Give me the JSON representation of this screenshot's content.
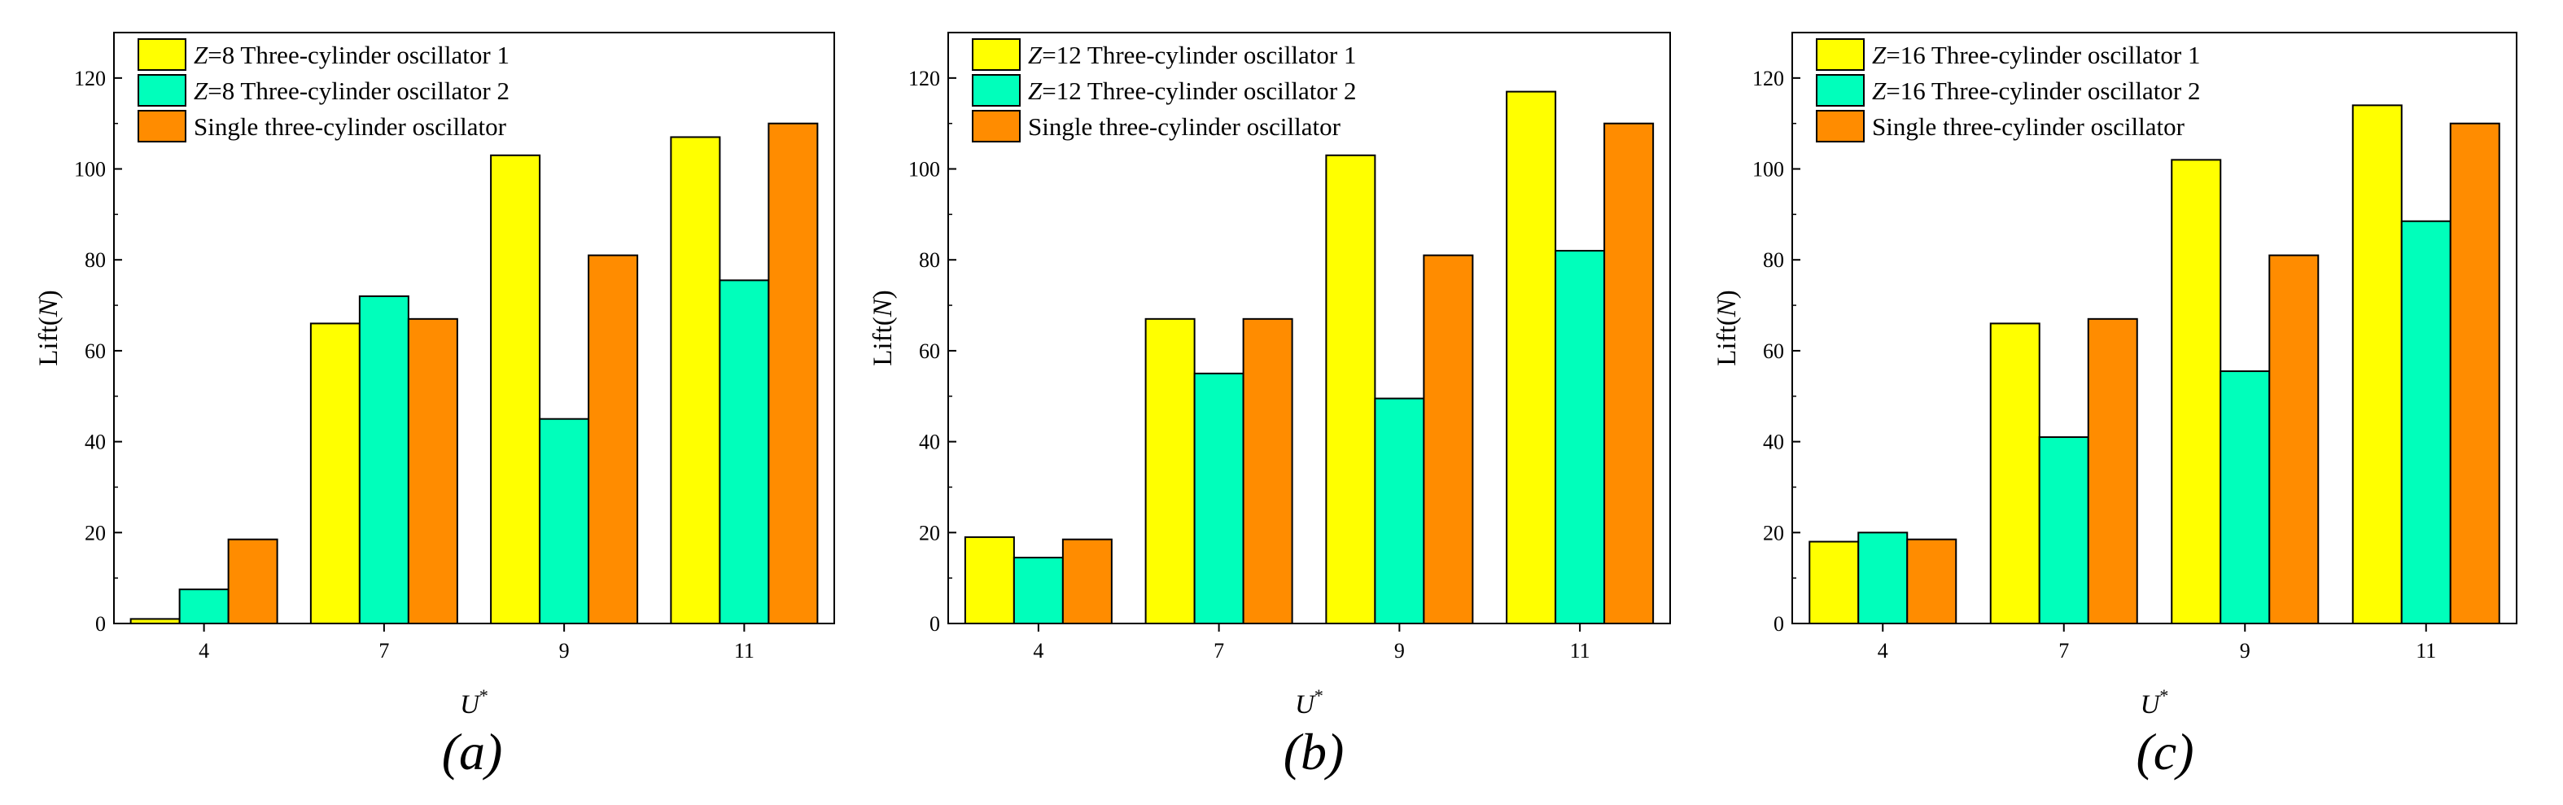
{
  "chart_data": [
    {
      "type": "bar",
      "panel_label": "(a)",
      "categories": [
        "4",
        "7",
        "9",
        "11"
      ],
      "xlabel": "U*",
      "ylabel": "Lift(N)",
      "ylim": [
        0,
        130
      ],
      "yticks": [
        0,
        20,
        40,
        60,
        80,
        100,
        120
      ],
      "legend_position": "top-left",
      "series": [
        {
          "name": "Z=8 Three-cylinder oscillator 1",
          "values": [
            1,
            66,
            103,
            107
          ],
          "color": "#ffff00"
        },
        {
          "name": "Z=8 Three-cylinder oscillator 2",
          "values": [
            7.5,
            72,
            45,
            75.5
          ],
          "color": "#00ffbb"
        },
        {
          "name": "Single three-cylinder oscillator",
          "values": [
            18.5,
            67,
            81,
            110
          ],
          "color": "#ff8c00"
        }
      ]
    },
    {
      "type": "bar",
      "panel_label": "(b)",
      "categories": [
        "4",
        "7",
        "9",
        "11"
      ],
      "xlabel": "U*",
      "ylabel": "Lift(N)",
      "ylim": [
        0,
        130
      ],
      "yticks": [
        0,
        20,
        40,
        60,
        80,
        100,
        120
      ],
      "legend_position": "top-left",
      "series": [
        {
          "name": "Z=12 Three-cylinder oscillator 1",
          "values": [
            19,
            67,
            103,
            117
          ],
          "color": "#ffff00"
        },
        {
          "name": "Z=12 Three-cylinder oscillator 2",
          "values": [
            14.5,
            55,
            49.5,
            82
          ],
          "color": "#00ffbb"
        },
        {
          "name": "Single three-cylinder oscillator",
          "values": [
            18.5,
            67,
            81,
            110
          ],
          "color": "#ff8c00"
        }
      ]
    },
    {
      "type": "bar",
      "panel_label": "(c)",
      "categories": [
        "4",
        "7",
        "9",
        "11"
      ],
      "xlabel": "U*",
      "ylabel": "Lift(N)",
      "ylim": [
        0,
        130
      ],
      "yticks": [
        0,
        20,
        40,
        60,
        80,
        100,
        120
      ],
      "legend_position": "top-left",
      "series": [
        {
          "name": "Z=16 Three-cylinder oscillator 1",
          "values": [
            18,
            66,
            102,
            114
          ],
          "color": "#ffff00"
        },
        {
          "name": "Z=16 Three-cylinder oscillator 2",
          "values": [
            20,
            41,
            55.5,
            88.5
          ],
          "color": "#00ffbb"
        },
        {
          "name": "Single three-cylinder oscillator",
          "values": [
            18.5,
            67,
            81,
            110
          ],
          "color": "#ff8c00"
        }
      ]
    }
  ]
}
